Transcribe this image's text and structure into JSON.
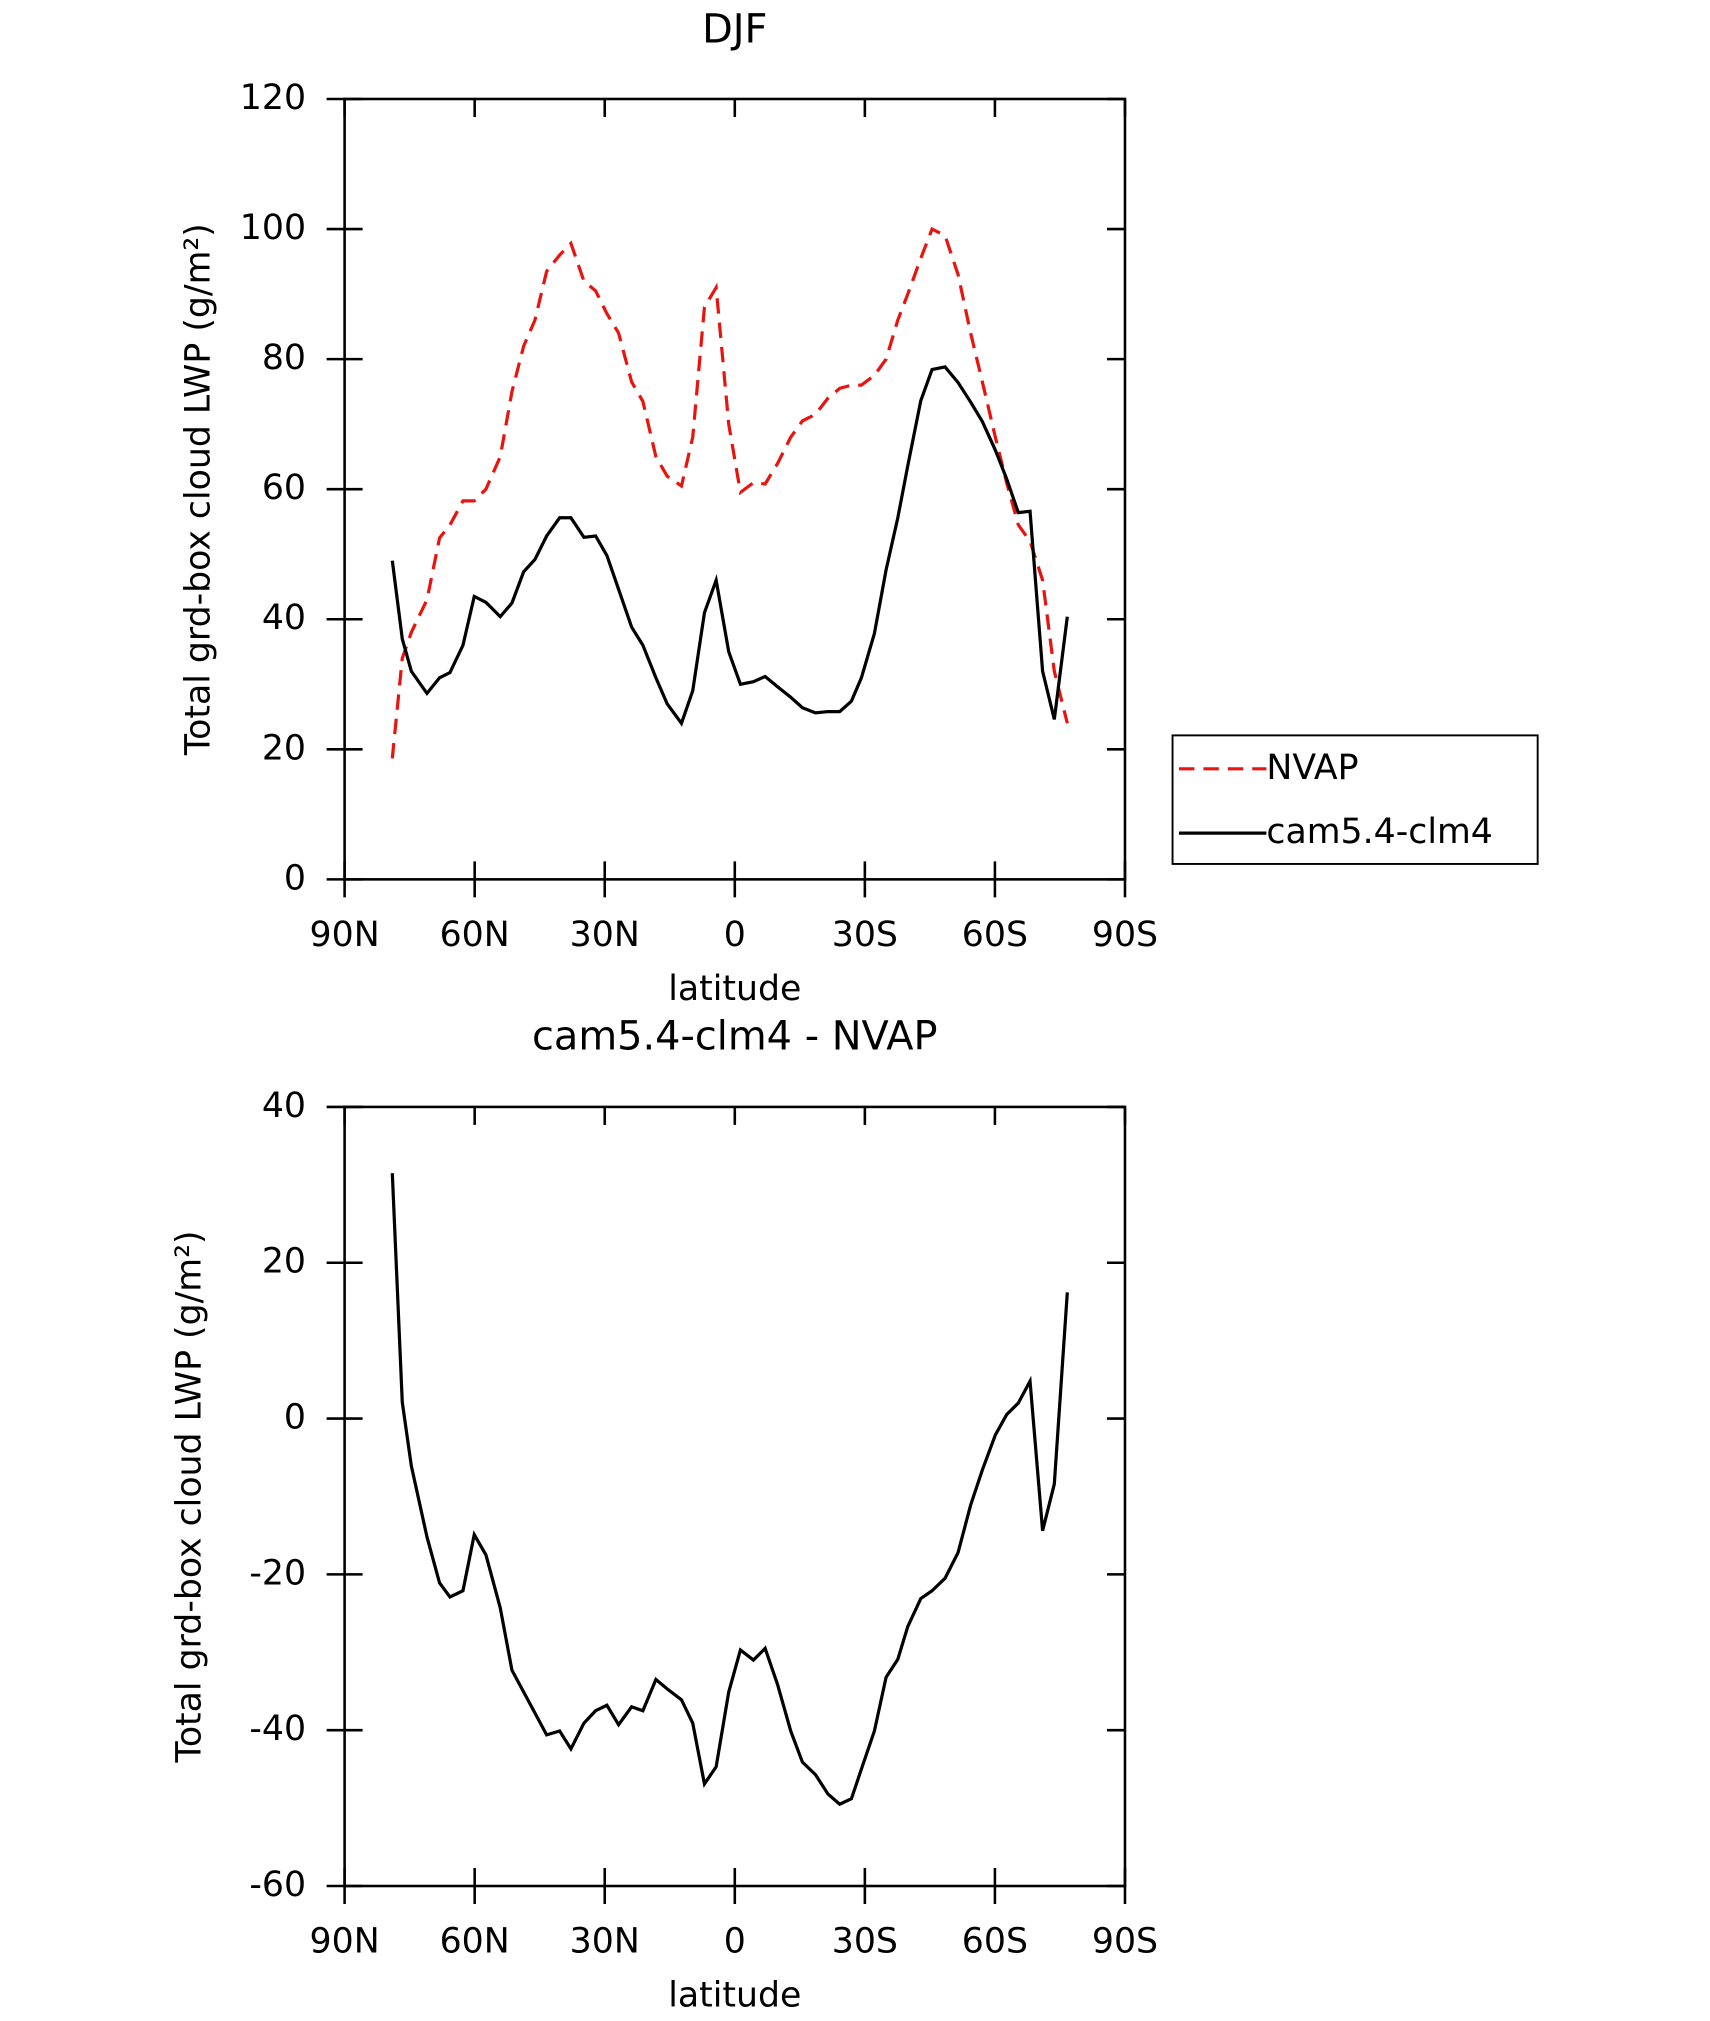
{
  "chart_data": [
    {
      "type": "line",
      "title": "DJF",
      "xlabel": "latitude",
      "ylabel": "Total grd-box cloud LWP (g/m²)",
      "x": [
        79.0,
        76.7,
        74.6,
        71.0,
        68.1,
        65.7,
        62.7,
        60.1,
        57.4,
        54.1,
        51.4,
        48.7,
        46.1,
        43.4,
        40.4,
        37.8,
        34.8,
        32.1,
        29.5,
        26.8,
        23.8,
        21.2,
        18.2,
        15.6,
        12.3,
        9.7,
        7.0,
        4.3,
        1.4,
        -1.3,
        -4.3,
        -7.0,
        -9.9,
        -12.9,
        -15.6,
        -18.6,
        -21.5,
        -24.2,
        -26.9,
        -29.2,
        -32.2,
        -34.9,
        -37.6,
        -39.9,
        -42.9,
        -45.5,
        -48.5,
        -51.5,
        -54.4,
        -57.1,
        -60.1,
        -62.7,
        -65.4,
        -68.1,
        -71.0,
        -73.7,
        -76.7
      ],
      "series": [
        {
          "name": "NVAP",
          "color": "#e8140f",
          "dash": true,
          "values": [
            18.6,
            34,
            38,
            43,
            52.5,
            54.5,
            58.2,
            58.2,
            60,
            65,
            75,
            82,
            86,
            93.5,
            96,
            97.8,
            92,
            90.5,
            87,
            84,
            76.5,
            73.5,
            65,
            62,
            60.5,
            68,
            88,
            91,
            70,
            59.5,
            61,
            60.8,
            64,
            68,
            70.5,
            71.5,
            74,
            75.5,
            76,
            76,
            77.5,
            80,
            86,
            90,
            95.5,
            100,
            99,
            93,
            84,
            76.5,
            68,
            61,
            54.5,
            52,
            46,
            32,
            24
          ]
        },
        {
          "name": "cam5.4-clm4",
          "color": "#000000",
          "dash": false,
          "values": [
            49,
            37,
            32,
            28.6,
            31,
            31.8,
            36,
            43.5,
            42.6,
            40.4,
            42.5,
            47.3,
            49.2,
            52.8,
            55.6,
            55.6,
            52.6,
            52.8,
            49.8,
            44.6,
            38.8,
            36,
            31,
            27,
            24,
            29,
            41,
            46,
            35,
            30,
            30.4,
            31.2,
            29.6,
            28,
            26.4,
            25.6,
            25.8,
            25.8,
            27.4,
            31,
            37.8,
            47.6,
            55.6,
            63.6,
            73.6,
            78.4,
            78.8,
            76.4,
            73.4,
            70.4,
            66,
            61.6,
            56.4,
            56.6,
            32,
            24.6,
            40.4
          ]
        }
      ],
      "xlim": [
        90,
        -90
      ],
      "xticks": [
        {
          "value": 90,
          "label": "90N"
        },
        {
          "value": 60,
          "label": "60N"
        },
        {
          "value": 30,
          "label": "30N"
        },
        0,
        {
          "value": -30,
          "label": "30S"
        },
        {
          "value": -60,
          "label": "60S"
        },
        {
          "value": -90,
          "label": "90S"
        }
      ],
      "ylim": [
        0,
        120
      ],
      "yticks": [
        0,
        20,
        40,
        60,
        80,
        100,
        120
      ],
      "legend": "right"
    },
    {
      "type": "line",
      "title": "cam5.4-clm4 - NVAP",
      "xlabel": "latitude",
      "ylabel": "Total grd-box cloud LWP (g/m²)",
      "x": [
        79.0,
        76.7,
        74.6,
        71.0,
        68.1,
        65.7,
        62.7,
        60.1,
        57.4,
        54.1,
        51.4,
        48.7,
        46.1,
        43.4,
        40.4,
        37.8,
        34.8,
        32.1,
        29.5,
        26.8,
        23.8,
        21.2,
        18.2,
        15.6,
        12.3,
        9.7,
        7.0,
        4.3,
        1.4,
        -1.3,
        -4.3,
        -7.0,
        -9.9,
        -12.9,
        -15.6,
        -18.6,
        -21.5,
        -24.2,
        -26.9,
        -29.2,
        -32.2,
        -34.9,
        -37.6,
        -39.9,
        -42.9,
        -45.5,
        -48.5,
        -51.5,
        -54.4,
        -57.1,
        -60.1,
        -62.7,
        -65.4,
        -68.1,
        -71.0,
        -73.7,
        -76.7
      ],
      "series": [
        {
          "color": "#000000",
          "dash": false,
          "values": [
            31.5,
            2.1,
            -6.1,
            -15.2,
            -21.1,
            -22.9,
            -22.1,
            -14.9,
            -17.5,
            -24.3,
            -32.3,
            -35.1,
            -37.8,
            -40.6,
            -40.1,
            -42.4,
            -39.1,
            -37.5,
            -36.8,
            -39.3,
            -37.0,
            -37.5,
            -33.5,
            -34.7,
            -36.1,
            -39.1,
            -46.9,
            -44.7,
            -35.1,
            -29.7,
            -31.0,
            -29.5,
            -34.2,
            -40.1,
            -44.1,
            -45.7,
            -48.2,
            -49.5,
            -48.8,
            -45.0,
            -40.1,
            -33.2,
            -30.9,
            -26.7,
            -23.1,
            -22.1,
            -20.5,
            -17.2,
            -11.1,
            -6.6,
            -2.1,
            0.5,
            2.0,
            4.8,
            -14.4,
            -8.4,
            16.2
          ]
        }
      ],
      "xlim": [
        90,
        -90
      ],
      "xticks": [
        {
          "value": 90,
          "label": "90N"
        },
        {
          "value": 60,
          "label": "60N"
        },
        {
          "value": 30,
          "label": "30N"
        },
        0,
        {
          "value": -30,
          "label": "30S"
        },
        {
          "value": -60,
          "label": "60S"
        },
        {
          "value": -90,
          "label": "90S"
        }
      ],
      "ylim": [
        -60,
        40
      ],
      "yticks": [
        -60,
        -40,
        -20,
        0,
        20,
        40
      ]
    }
  ]
}
